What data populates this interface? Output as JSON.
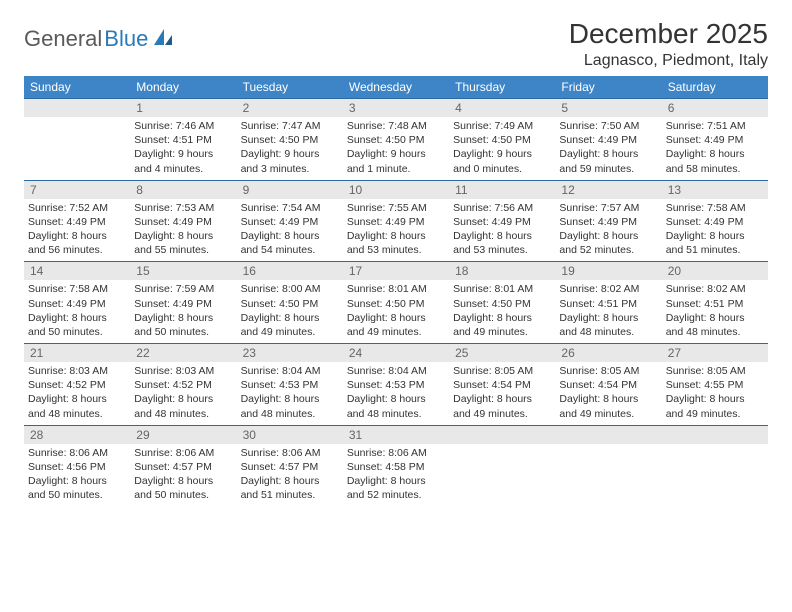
{
  "logo": {
    "part1": "General",
    "part2": "Blue"
  },
  "title": "December 2025",
  "location": "Lagnasco, Piedmont, Italy",
  "colors": {
    "header_bg": "#3d85c6",
    "header_text": "#ffffff",
    "daynum_bg": "#e8e8e8",
    "daynum_text": "#666666",
    "border": "#2a6aa0",
    "body_text": "#333333",
    "logo_gray": "#5a5a5a",
    "logo_blue": "#2a7ab8"
  },
  "day_headers": [
    "Sunday",
    "Monday",
    "Tuesday",
    "Wednesday",
    "Thursday",
    "Friday",
    "Saturday"
  ],
  "weeks": [
    {
      "nums": [
        "",
        "1",
        "2",
        "3",
        "4",
        "5",
        "6"
      ],
      "cells": [
        {
          "sunrise": "",
          "sunset": "",
          "daylight": ""
        },
        {
          "sunrise": "Sunrise: 7:46 AM",
          "sunset": "Sunset: 4:51 PM",
          "daylight": "Daylight: 9 hours and 4 minutes."
        },
        {
          "sunrise": "Sunrise: 7:47 AM",
          "sunset": "Sunset: 4:50 PM",
          "daylight": "Daylight: 9 hours and 3 minutes."
        },
        {
          "sunrise": "Sunrise: 7:48 AM",
          "sunset": "Sunset: 4:50 PM",
          "daylight": "Daylight: 9 hours and 1 minute."
        },
        {
          "sunrise": "Sunrise: 7:49 AM",
          "sunset": "Sunset: 4:50 PM",
          "daylight": "Daylight: 9 hours and 0 minutes."
        },
        {
          "sunrise": "Sunrise: 7:50 AM",
          "sunset": "Sunset: 4:49 PM",
          "daylight": "Daylight: 8 hours and 59 minutes."
        },
        {
          "sunrise": "Sunrise: 7:51 AM",
          "sunset": "Sunset: 4:49 PM",
          "daylight": "Daylight: 8 hours and 58 minutes."
        }
      ]
    },
    {
      "nums": [
        "7",
        "8",
        "9",
        "10",
        "11",
        "12",
        "13"
      ],
      "cells": [
        {
          "sunrise": "Sunrise: 7:52 AM",
          "sunset": "Sunset: 4:49 PM",
          "daylight": "Daylight: 8 hours and 56 minutes."
        },
        {
          "sunrise": "Sunrise: 7:53 AM",
          "sunset": "Sunset: 4:49 PM",
          "daylight": "Daylight: 8 hours and 55 minutes."
        },
        {
          "sunrise": "Sunrise: 7:54 AM",
          "sunset": "Sunset: 4:49 PM",
          "daylight": "Daylight: 8 hours and 54 minutes."
        },
        {
          "sunrise": "Sunrise: 7:55 AM",
          "sunset": "Sunset: 4:49 PM",
          "daylight": "Daylight: 8 hours and 53 minutes."
        },
        {
          "sunrise": "Sunrise: 7:56 AM",
          "sunset": "Sunset: 4:49 PM",
          "daylight": "Daylight: 8 hours and 53 minutes."
        },
        {
          "sunrise": "Sunrise: 7:57 AM",
          "sunset": "Sunset: 4:49 PM",
          "daylight": "Daylight: 8 hours and 52 minutes."
        },
        {
          "sunrise": "Sunrise: 7:58 AM",
          "sunset": "Sunset: 4:49 PM",
          "daylight": "Daylight: 8 hours and 51 minutes."
        }
      ]
    },
    {
      "nums": [
        "14",
        "15",
        "16",
        "17",
        "18",
        "19",
        "20"
      ],
      "cells": [
        {
          "sunrise": "Sunrise: 7:58 AM",
          "sunset": "Sunset: 4:49 PM",
          "daylight": "Daylight: 8 hours and 50 minutes."
        },
        {
          "sunrise": "Sunrise: 7:59 AM",
          "sunset": "Sunset: 4:49 PM",
          "daylight": "Daylight: 8 hours and 50 minutes."
        },
        {
          "sunrise": "Sunrise: 8:00 AM",
          "sunset": "Sunset: 4:50 PM",
          "daylight": "Daylight: 8 hours and 49 minutes."
        },
        {
          "sunrise": "Sunrise: 8:01 AM",
          "sunset": "Sunset: 4:50 PM",
          "daylight": "Daylight: 8 hours and 49 minutes."
        },
        {
          "sunrise": "Sunrise: 8:01 AM",
          "sunset": "Sunset: 4:50 PM",
          "daylight": "Daylight: 8 hours and 49 minutes."
        },
        {
          "sunrise": "Sunrise: 8:02 AM",
          "sunset": "Sunset: 4:51 PM",
          "daylight": "Daylight: 8 hours and 48 minutes."
        },
        {
          "sunrise": "Sunrise: 8:02 AM",
          "sunset": "Sunset: 4:51 PM",
          "daylight": "Daylight: 8 hours and 48 minutes."
        }
      ]
    },
    {
      "nums": [
        "21",
        "22",
        "23",
        "24",
        "25",
        "26",
        "27"
      ],
      "cells": [
        {
          "sunrise": "Sunrise: 8:03 AM",
          "sunset": "Sunset: 4:52 PM",
          "daylight": "Daylight: 8 hours and 48 minutes."
        },
        {
          "sunrise": "Sunrise: 8:03 AM",
          "sunset": "Sunset: 4:52 PM",
          "daylight": "Daylight: 8 hours and 48 minutes."
        },
        {
          "sunrise": "Sunrise: 8:04 AM",
          "sunset": "Sunset: 4:53 PM",
          "daylight": "Daylight: 8 hours and 48 minutes."
        },
        {
          "sunrise": "Sunrise: 8:04 AM",
          "sunset": "Sunset: 4:53 PM",
          "daylight": "Daylight: 8 hours and 48 minutes."
        },
        {
          "sunrise": "Sunrise: 8:05 AM",
          "sunset": "Sunset: 4:54 PM",
          "daylight": "Daylight: 8 hours and 49 minutes."
        },
        {
          "sunrise": "Sunrise: 8:05 AM",
          "sunset": "Sunset: 4:54 PM",
          "daylight": "Daylight: 8 hours and 49 minutes."
        },
        {
          "sunrise": "Sunrise: 8:05 AM",
          "sunset": "Sunset: 4:55 PM",
          "daylight": "Daylight: 8 hours and 49 minutes."
        }
      ]
    },
    {
      "nums": [
        "28",
        "29",
        "30",
        "31",
        "",
        "",
        ""
      ],
      "cells": [
        {
          "sunrise": "Sunrise: 8:06 AM",
          "sunset": "Sunset: 4:56 PM",
          "daylight": "Daylight: 8 hours and 50 minutes."
        },
        {
          "sunrise": "Sunrise: 8:06 AM",
          "sunset": "Sunset: 4:57 PM",
          "daylight": "Daylight: 8 hours and 50 minutes."
        },
        {
          "sunrise": "Sunrise: 8:06 AM",
          "sunset": "Sunset: 4:57 PM",
          "daylight": "Daylight: 8 hours and 51 minutes."
        },
        {
          "sunrise": "Sunrise: 8:06 AM",
          "sunset": "Sunset: 4:58 PM",
          "daylight": "Daylight: 8 hours and 52 minutes."
        },
        {
          "sunrise": "",
          "sunset": "",
          "daylight": ""
        },
        {
          "sunrise": "",
          "sunset": "",
          "daylight": ""
        },
        {
          "sunrise": "",
          "sunset": "",
          "daylight": ""
        }
      ]
    }
  ]
}
